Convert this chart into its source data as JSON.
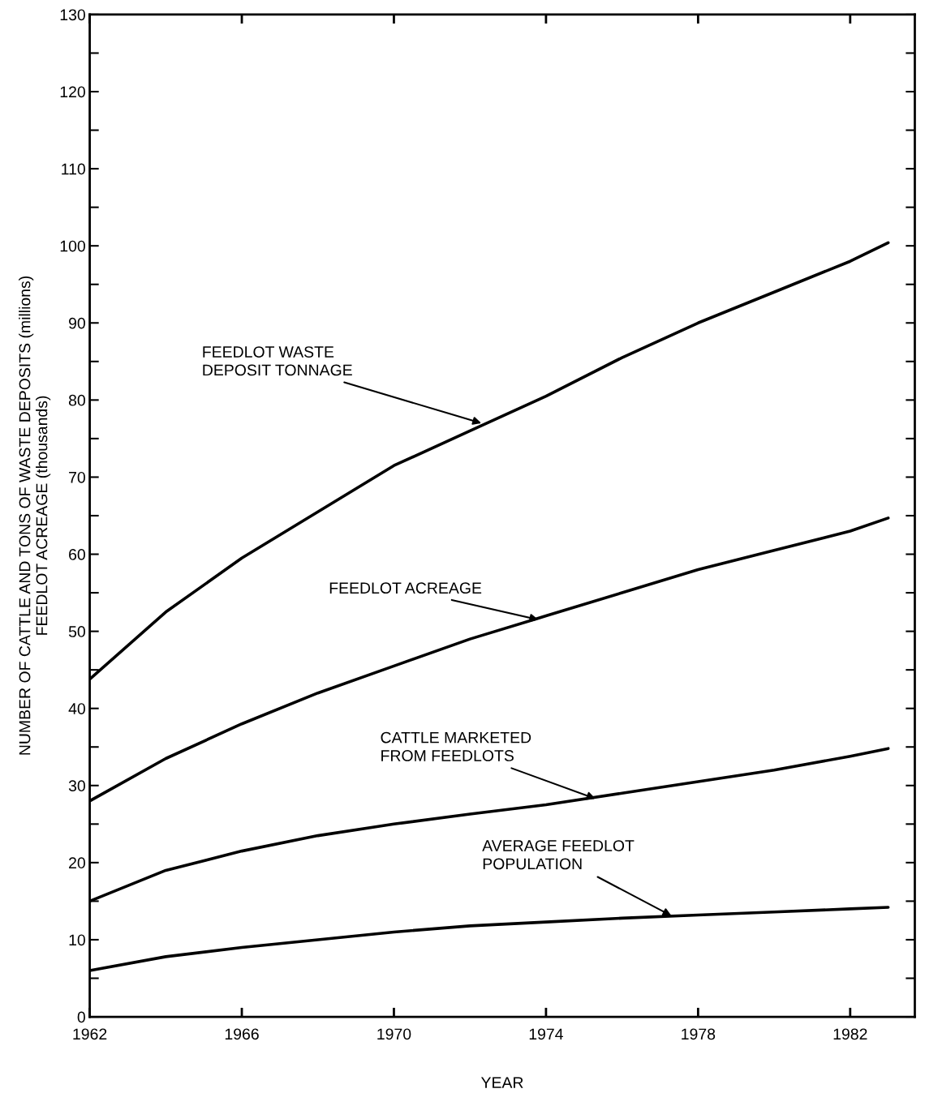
{
  "chart_data": {
    "type": "line",
    "xlabel": "YEAR",
    "ylabel": "NUMBER OF CATTLE AND TONS OF WASTE DEPOSITS (millions)\nFEEDLOT ACREAGE (thousands)",
    "x": [
      1962,
      1964,
      1966,
      1968,
      1970,
      1972,
      1974,
      1976,
      1978,
      1980,
      1982,
      1983
    ],
    "series": [
      {
        "color": "#000000",
        "values": [
          43.8,
          52.5,
          59.5,
          65.5,
          71.5,
          76,
          80.5,
          85.5,
          90,
          94,
          98,
          100.4
        ]
      },
      {
        "color": "#000000",
        "values": [
          28,
          33.5,
          38,
          42,
          45.5,
          49,
          52,
          55,
          58,
          60.5,
          63,
          64.7
        ]
      },
      {
        "color": "#000000",
        "values": [
          15,
          19,
          21.5,
          23.5,
          25,
          26.3,
          27.5,
          29,
          30.5,
          32,
          33.8,
          34.8
        ]
      },
      {
        "color": "#000000",
        "values": [
          6,
          7.8,
          9,
          10,
          11,
          11.8,
          12.3,
          12.8,
          13.2,
          13.6,
          14,
          14.2
        ]
      }
    ],
    "annotations": [
      {
        "text": "FEEDLOT WASTE\nDEPOSIT TONNAGE",
        "x": 1972.3,
        "y": 77
      },
      {
        "text": "FEEDLOT ACREAGE",
        "x": 1973.8,
        "y": 51.5
      },
      {
        "text": "CATTLE MARKETED\nFROM FEEDLOTS",
        "x": 1975.3,
        "y": 28.3
      },
      {
        "text": "AVERAGE FEEDLOT\nPOPULATION",
        "x": 1977.3,
        "y": 13.1
      }
    ],
    "xlim": [
      1962,
      1983.7
    ],
    "ylim": [
      0,
      130
    ],
    "xticks": [
      1962,
      1966,
      1970,
      1974,
      1978,
      1982
    ],
    "yticks": [
      0,
      {
        "value": 5,
        "label": null
      },
      10,
      {
        "value": 15,
        "label": null
      },
      20,
      {
        "value": 25,
        "label": null
      },
      30,
      {
        "value": 35,
        "label": null
      },
      40,
      {
        "value": 45,
        "label": null
      },
      50,
      {
        "value": 55,
        "label": null
      },
      60,
      {
        "value": 65,
        "label": null
      },
      70,
      {
        "value": 75,
        "label": null
      },
      80,
      {
        "value": 85,
        "label": null
      },
      90,
      {
        "value": 95,
        "label": null
      },
      100,
      {
        "value": 105,
        "label": null
      },
      110,
      {
        "value": 115,
        "label": null
      },
      120,
      {
        "value": 125,
        "label": null
      },
      130
    ],
    "grid": false,
    "marker": "none",
    "line_style": "solid"
  }
}
